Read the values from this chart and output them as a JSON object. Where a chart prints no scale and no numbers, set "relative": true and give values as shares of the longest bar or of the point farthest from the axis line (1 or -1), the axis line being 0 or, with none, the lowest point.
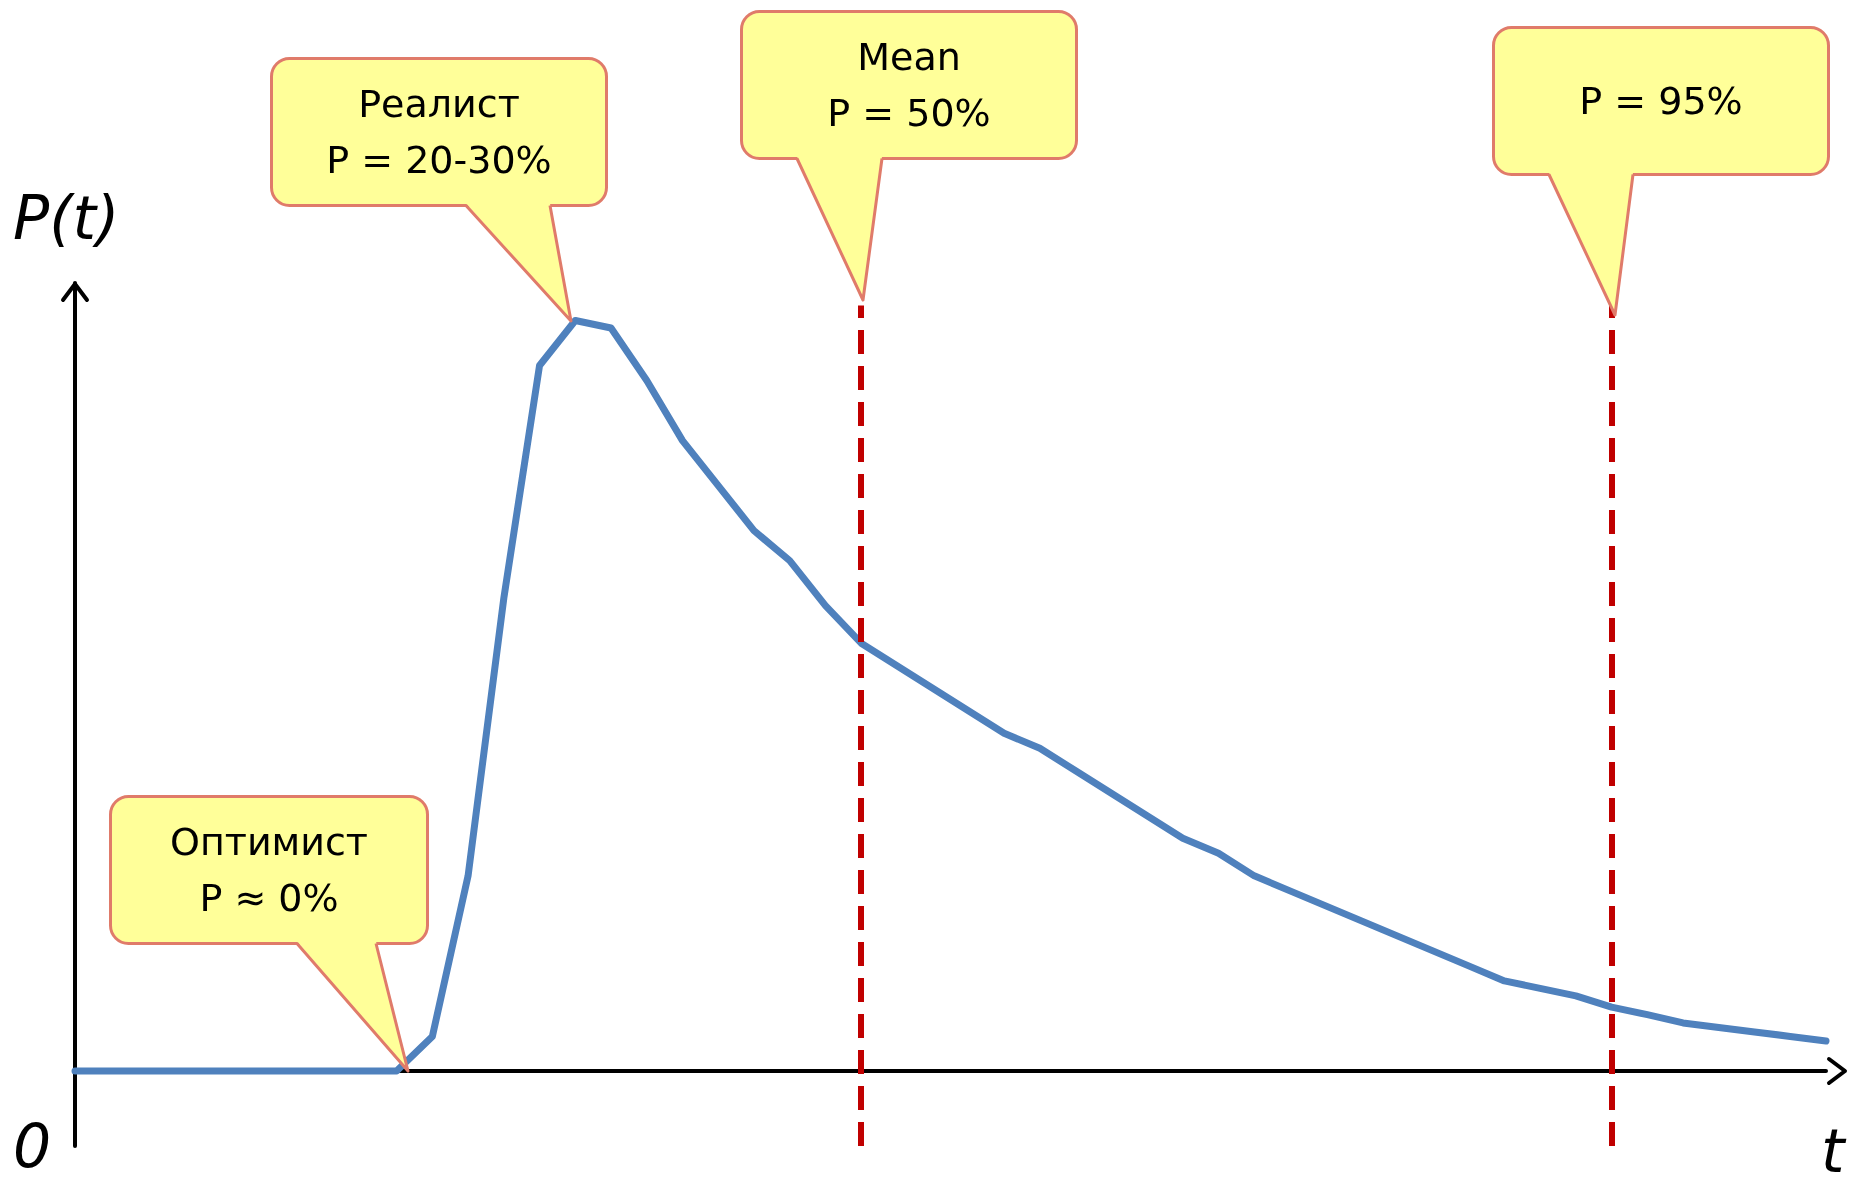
{
  "chart_data": {
    "type": "line",
    "relative": true,
    "xlabel": "t",
    "ylabel": "P(t)",
    "marker": "none",
    "line_style": "solid",
    "categories": [
      null,
      null,
      null,
      null,
      null,
      null,
      null,
      null,
      null,
      null,
      null,
      null,
      null,
      null,
      null,
      null,
      null,
      null,
      null,
      null,
      null,
      null,
      null,
      null,
      null,
      null,
      null,
      null,
      null,
      null,
      null,
      null,
      null,
      null,
      null,
      null,
      null,
      null,
      null,
      null,
      null,
      null,
      null,
      null,
      null,
      null,
      null,
      null,
      null,
      null
    ],
    "series": [
      {
        "color": "#4f81bd",
        "values": [
          0,
          0,
          0,
          0,
          0,
          0,
          0,
          0,
          0,
          0,
          0.046,
          0.26,
          0.63,
          0.94,
          1.0,
          0.99,
          0.92,
          0.84,
          0.78,
          0.72,
          0.68,
          0.62,
          0.57,
          0.54,
          0.51,
          0.48,
          0.45,
          0.43,
          0.4,
          0.37,
          0.34,
          0.31,
          0.29,
          0.26,
          0.24,
          0.22,
          0.2,
          0.18,
          0.16,
          0.14,
          0.12,
          0.11,
          0.1,
          0.085,
          0.075,
          0.064,
          0.058,
          0.052,
          0.046,
          0.04
        ]
      }
    ],
    "annotations": [
      "0",
      "Оптимист\nP ≈ 0%",
      "Реалист\nP = 20-30%",
      "Mean\nP = 50%",
      "P = 95%"
    ]
  }
}
